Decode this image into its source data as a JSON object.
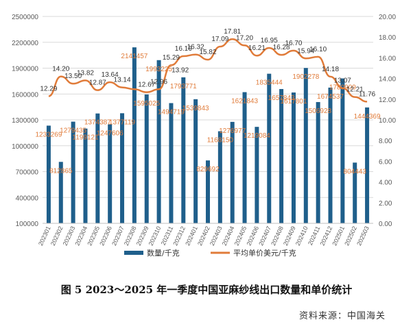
{
  "caption": "图 5   2023～2025 年一季度中国亚麻纱线出口数量和单价统计",
  "source": "资料来源：中国海关",
  "chart_data": {
    "type": "bar-line-combo",
    "title": "",
    "categories": [
      "202301",
      "202302",
      "202303",
      "202304",
      "202305",
      "202306",
      "202307",
      "202308",
      "202309",
      "202310",
      "202311",
      "202312",
      "202401",
      "202402",
      "202403",
      "202404",
      "202405",
      "202406",
      "202407",
      "202408",
      "202409",
      "202410",
      "202411",
      "202412",
      "202501",
      "202502",
      "202503"
    ],
    "series": [
      {
        "name": "数量/千克",
        "type": "bar",
        "axis": "left",
        "color": "#1f5f8b",
        "values": [
          1233269,
          812865,
          1279435,
          1199121,
          1374387,
          1247606,
          1377119,
          2141457,
          1595025,
          1993225,
          1494719,
          1793771,
          1539843,
          829692,
          1168150,
          1276977,
          1621843,
          1219084,
          1835444,
          1657843,
          1617801,
          1902278,
          1506928,
          1674537,
          1780909,
          804443,
          1444369
        ],
        "labels": [
          "1233269",
          "812865",
          "1279435",
          "1199121",
          "1374387",
          "1247606",
          "1377119",
          "2141457",
          "1595025",
          "1993225",
          "1494719",
          "1793771",
          "1539843",
          "829692",
          "1168150",
          "1276977",
          "1621843",
          "1219084",
          "1835444",
          "1657843",
          "1617801",
          "1902278",
          "1506928",
          "1674537",
          "1780909",
          "804443",
          "1444369"
        ]
      },
      {
        "name": "平均单价美元/千克",
        "type": "line",
        "axis": "right",
        "color": "#e07b39",
        "values": [
          12.29,
          14.2,
          13.5,
          13.82,
          12.87,
          13.64,
          13.14,
          12.96,
          12.67,
          12.96,
          15.29,
          16.16,
          16.32,
          15.82,
          17.09,
          17.81,
          17.2,
          16.21,
          16.95,
          16.28,
          16.7,
          15.94,
          16.1,
          14.18,
          13.07,
          12.21,
          11.76
        ],
        "labels": [
          "12.29",
          "14.20",
          "13.50",
          "13.82",
          "12.87",
          "13.64",
          "13.14",
          "",
          "12.67",
          "12.96",
          "15.29",
          "16.16",
          "16.32",
          "15.82",
          "17.09",
          "17.81",
          "17.20",
          "16.21",
          "16.95",
          "16.28",
          "16.70",
          "15.94",
          "16.10",
          "14.18",
          "13.07",
          "12.21",
          "11.76"
        ]
      }
    ],
    "y_left": {
      "range": [
        100000,
        2500000
      ],
      "ticks": [
        "100000",
        "400000",
        "700000",
        "1000000",
        "1300000",
        "1600000",
        "1900000",
        "2200000",
        "2500000"
      ]
    },
    "y_right": {
      "range": [
        0,
        20
      ],
      "ticks": [
        "0.00",
        "2.00",
        "4.00",
        "6.00",
        "8.00",
        "10.00",
        "12.00",
        "14.00",
        "16.00",
        "18.00",
        "20.00"
      ]
    },
    "grid": true,
    "legend_position": "bottom",
    "extra_line_label": {
      "index": 12,
      "text": "13.92"
    }
  }
}
